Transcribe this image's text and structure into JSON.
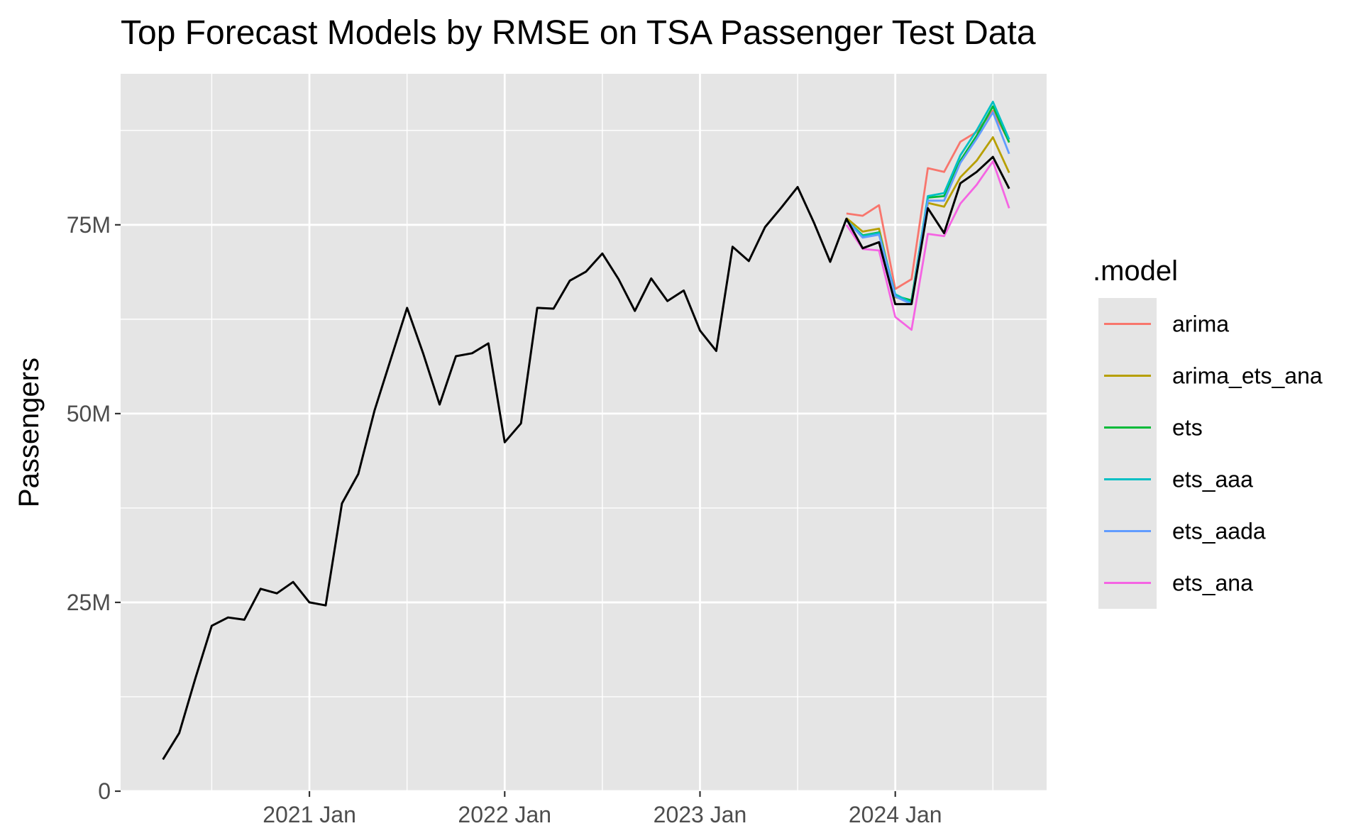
{
  "chart_data": {
    "type": "line",
    "title": "Top Forecast Models by RMSE on TSA Passenger Test Data",
    "xlabel": "",
    "ylabel": "Passengers",
    "x_ticks": [
      "2021 Jan",
      "2022 Jan",
      "2023 Jan",
      "2024 Jan"
    ],
    "y_ticks": [
      "0",
      "25M",
      "50M",
      "75M"
    ],
    "ylim": [
      0,
      95000000
    ],
    "xlim": [
      "2020-02",
      "2024-10"
    ],
    "grid": true,
    "panel_background": "#e5e5e5",
    "legend": {
      "title": ".model",
      "position": "right",
      "entries": [
        {
          "label": "arima",
          "color": "#f8766d"
        },
        {
          "label": "arima_ets_ana",
          "color": "#b79f00"
        },
        {
          "label": "ets",
          "color": "#00ba38"
        },
        {
          "label": "ets_aaa",
          "color": "#00bfc4"
        },
        {
          "label": "ets_aada",
          "color": "#619cff"
        },
        {
          "label": "ets_ana",
          "color": "#f564e3"
        }
      ]
    },
    "actual": {
      "color": "#000000",
      "x": [
        "2020-04",
        "2020-05",
        "2020-06",
        "2020-07",
        "2020-08",
        "2020-09",
        "2020-10",
        "2020-11",
        "2020-12",
        "2021-01",
        "2021-02",
        "2021-03",
        "2021-04",
        "2021-05",
        "2021-06",
        "2021-07",
        "2021-08",
        "2021-09",
        "2021-10",
        "2021-11",
        "2021-12",
        "2022-01",
        "2022-02",
        "2022-03",
        "2022-04",
        "2022-05",
        "2022-06",
        "2022-07",
        "2022-08",
        "2022-09",
        "2022-10",
        "2022-11",
        "2022-12",
        "2023-01",
        "2023-02",
        "2023-03",
        "2023-04",
        "2023-05",
        "2023-06",
        "2023-07",
        "2023-08",
        "2023-09",
        "2023-10",
        "2023-11",
        "2023-12",
        "2024-01",
        "2024-02",
        "2024-03",
        "2024-04",
        "2024-05",
        "2024-06",
        "2024-07",
        "2024-08"
      ],
      "values": [
        4.2,
        7.7,
        15.0,
        21.9,
        23.0,
        22.7,
        26.8,
        26.2,
        27.7,
        25.0,
        24.6,
        38.1,
        42.0,
        50.4,
        57.2,
        64.0,
        57.9,
        51.2,
        57.6,
        58.0,
        59.3,
        46.2,
        48.7,
        64.0,
        63.9,
        67.6,
        68.8,
        71.2,
        67.8,
        63.6,
        67.9,
        64.9,
        66.3,
        61.0,
        58.3,
        72.1,
        70.2,
        74.7,
        77.3,
        80.0,
        75.3,
        70.1,
        75.8,
        71.9,
        72.7,
        64.5,
        64.5,
        77.2,
        73.9,
        80.5,
        82.0,
        84.0,
        79.8
      ]
    },
    "forecast_x": [
      "2023-10",
      "2023-11",
      "2023-12",
      "2024-01",
      "2024-02",
      "2024-03",
      "2024-04",
      "2024-05",
      "2024-06",
      "2024-07",
      "2024-08"
    ],
    "series": [
      {
        "name": "arima",
        "color": "#f8766d",
        "values": [
          76.5,
          76.2,
          77.6,
          66.5,
          67.8,
          82.5,
          82.0,
          86.0,
          87.3,
          90.1,
          86.0
        ]
      },
      {
        "name": "arima_ets_ana",
        "color": "#b79f00",
        "values": [
          75.9,
          74.1,
          74.5,
          65.4,
          65.0,
          77.9,
          77.4,
          81.3,
          83.5,
          86.6,
          81.9
        ]
      },
      {
        "name": "ets",
        "color": "#00ba38",
        "values": [
          75.6,
          73.6,
          74.0,
          65.6,
          65.0,
          78.6,
          78.8,
          83.5,
          86.8,
          90.7,
          85.9
        ]
      },
      {
        "name": "ets_aaa",
        "color": "#00bfc4",
        "values": [
          75.6,
          73.5,
          73.9,
          65.8,
          64.7,
          78.8,
          79.2,
          84.2,
          87.5,
          91.3,
          86.3
        ]
      },
      {
        "name": "ets_aada",
        "color": "#619cff",
        "values": [
          75.6,
          73.3,
          73.7,
          65.5,
          64.5,
          78.2,
          78.2,
          83.2,
          86.4,
          89.9,
          84.4
        ]
      },
      {
        "name": "ets_ana",
        "color": "#f564e3",
        "values": [
          75.0,
          71.8,
          71.6,
          62.8,
          61.1,
          73.8,
          73.5,
          77.8,
          80.3,
          83.4,
          77.2
        ]
      }
    ],
    "value_unit": "M"
  }
}
